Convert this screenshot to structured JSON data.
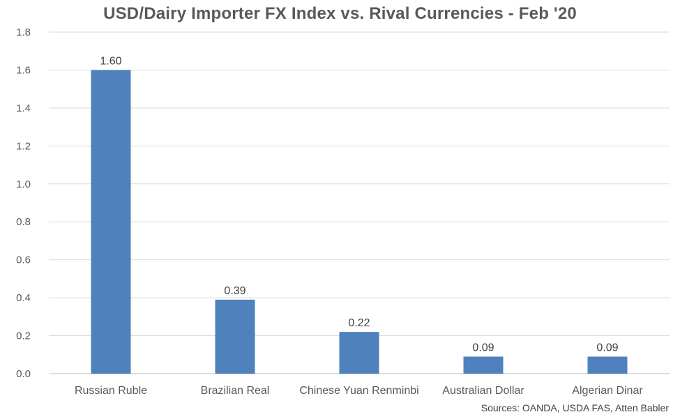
{
  "chart_data": {
    "type": "bar",
    "title": "USD/Dairy Importer FX Index vs. Rival Currencies - Feb '20",
    "xlabel": "",
    "ylabel": "",
    "categories": [
      "Russian Ruble",
      "Brazilian Real",
      "Chinese Yuan Renminbi",
      "Australian Dollar",
      "Algerian Dinar"
    ],
    "values": [
      1.6,
      0.39,
      0.22,
      0.09,
      0.09
    ],
    "data_labels": [
      "1.60",
      "0.39",
      "0.22",
      "0.09",
      "0.09"
    ],
    "ylim": [
      0,
      1.8
    ],
    "yticks": [
      0,
      0.2,
      0.4,
      0.6,
      0.8,
      1.0,
      1.2,
      1.4,
      1.6,
      1.8
    ],
    "ytick_labels": [
      "0.0",
      "0.2",
      "0.4",
      "0.6",
      "0.8",
      "1.0",
      "1.2",
      "1.4",
      "1.6",
      "1.8"
    ],
    "grid": true,
    "legend": "none",
    "bar_color": "#4f81bd",
    "source": "Sources: OANDA, USDA FAS, Atten Babler"
  }
}
